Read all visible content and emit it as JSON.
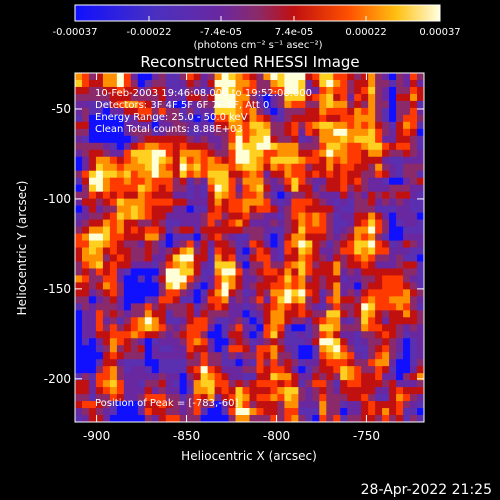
{
  "figure": {
    "title": "Reconstructed RHESSI Image",
    "xlabel": "Heliocentric X (arcsec)",
    "ylabel": "Heliocentric Y (arcsec)",
    "x_ticks": [
      "-900",
      "-850",
      "-800",
      "-750"
    ],
    "y_ticks": [
      "-50",
      "-100",
      "-150",
      "-200"
    ],
    "x_tick_values": [
      -900,
      -850,
      -800,
      -750
    ],
    "y_tick_values": [
      -50,
      -100,
      -150,
      -200
    ],
    "xlim": [
      -912,
      -718
    ],
    "ylim": [
      -224,
      -30
    ],
    "annotations": {
      "time_range": "10-Feb-2003 19:46:08.000 to 19:52:08.000",
      "detectors": "Detectors: 3F 4F 5F 6F 7F 8F, Att 0",
      "energy": "Energy Range: 25.0 - 50.0 keV",
      "clean": "Clean    Total counts: 8.88E+03",
      "peak": "Position of Peak = [-783,-60]"
    },
    "colorbar": {
      "ticks": [
        "-0.00037",
        "-0.00022",
        "-7.4e-05",
        "7.4e-05",
        "0.00022",
        "0.00037"
      ],
      "tick_values": [
        -0.00037,
        -0.00022,
        -7.4e-05,
        7.4e-05,
        0.00022,
        0.00037
      ],
      "units": "(photons cm⁻² s⁻¹ asec⁻²)",
      "colors": [
        "#1010ff",
        "#5a2fb0",
        "#6a28a0",
        "#8a2a6a",
        "#c01010",
        "#ff3a00",
        "#ff9000",
        "#ffd020",
        "#ffffd8"
      ]
    },
    "footer_date": "28-Apr-2022 21:25"
  }
}
